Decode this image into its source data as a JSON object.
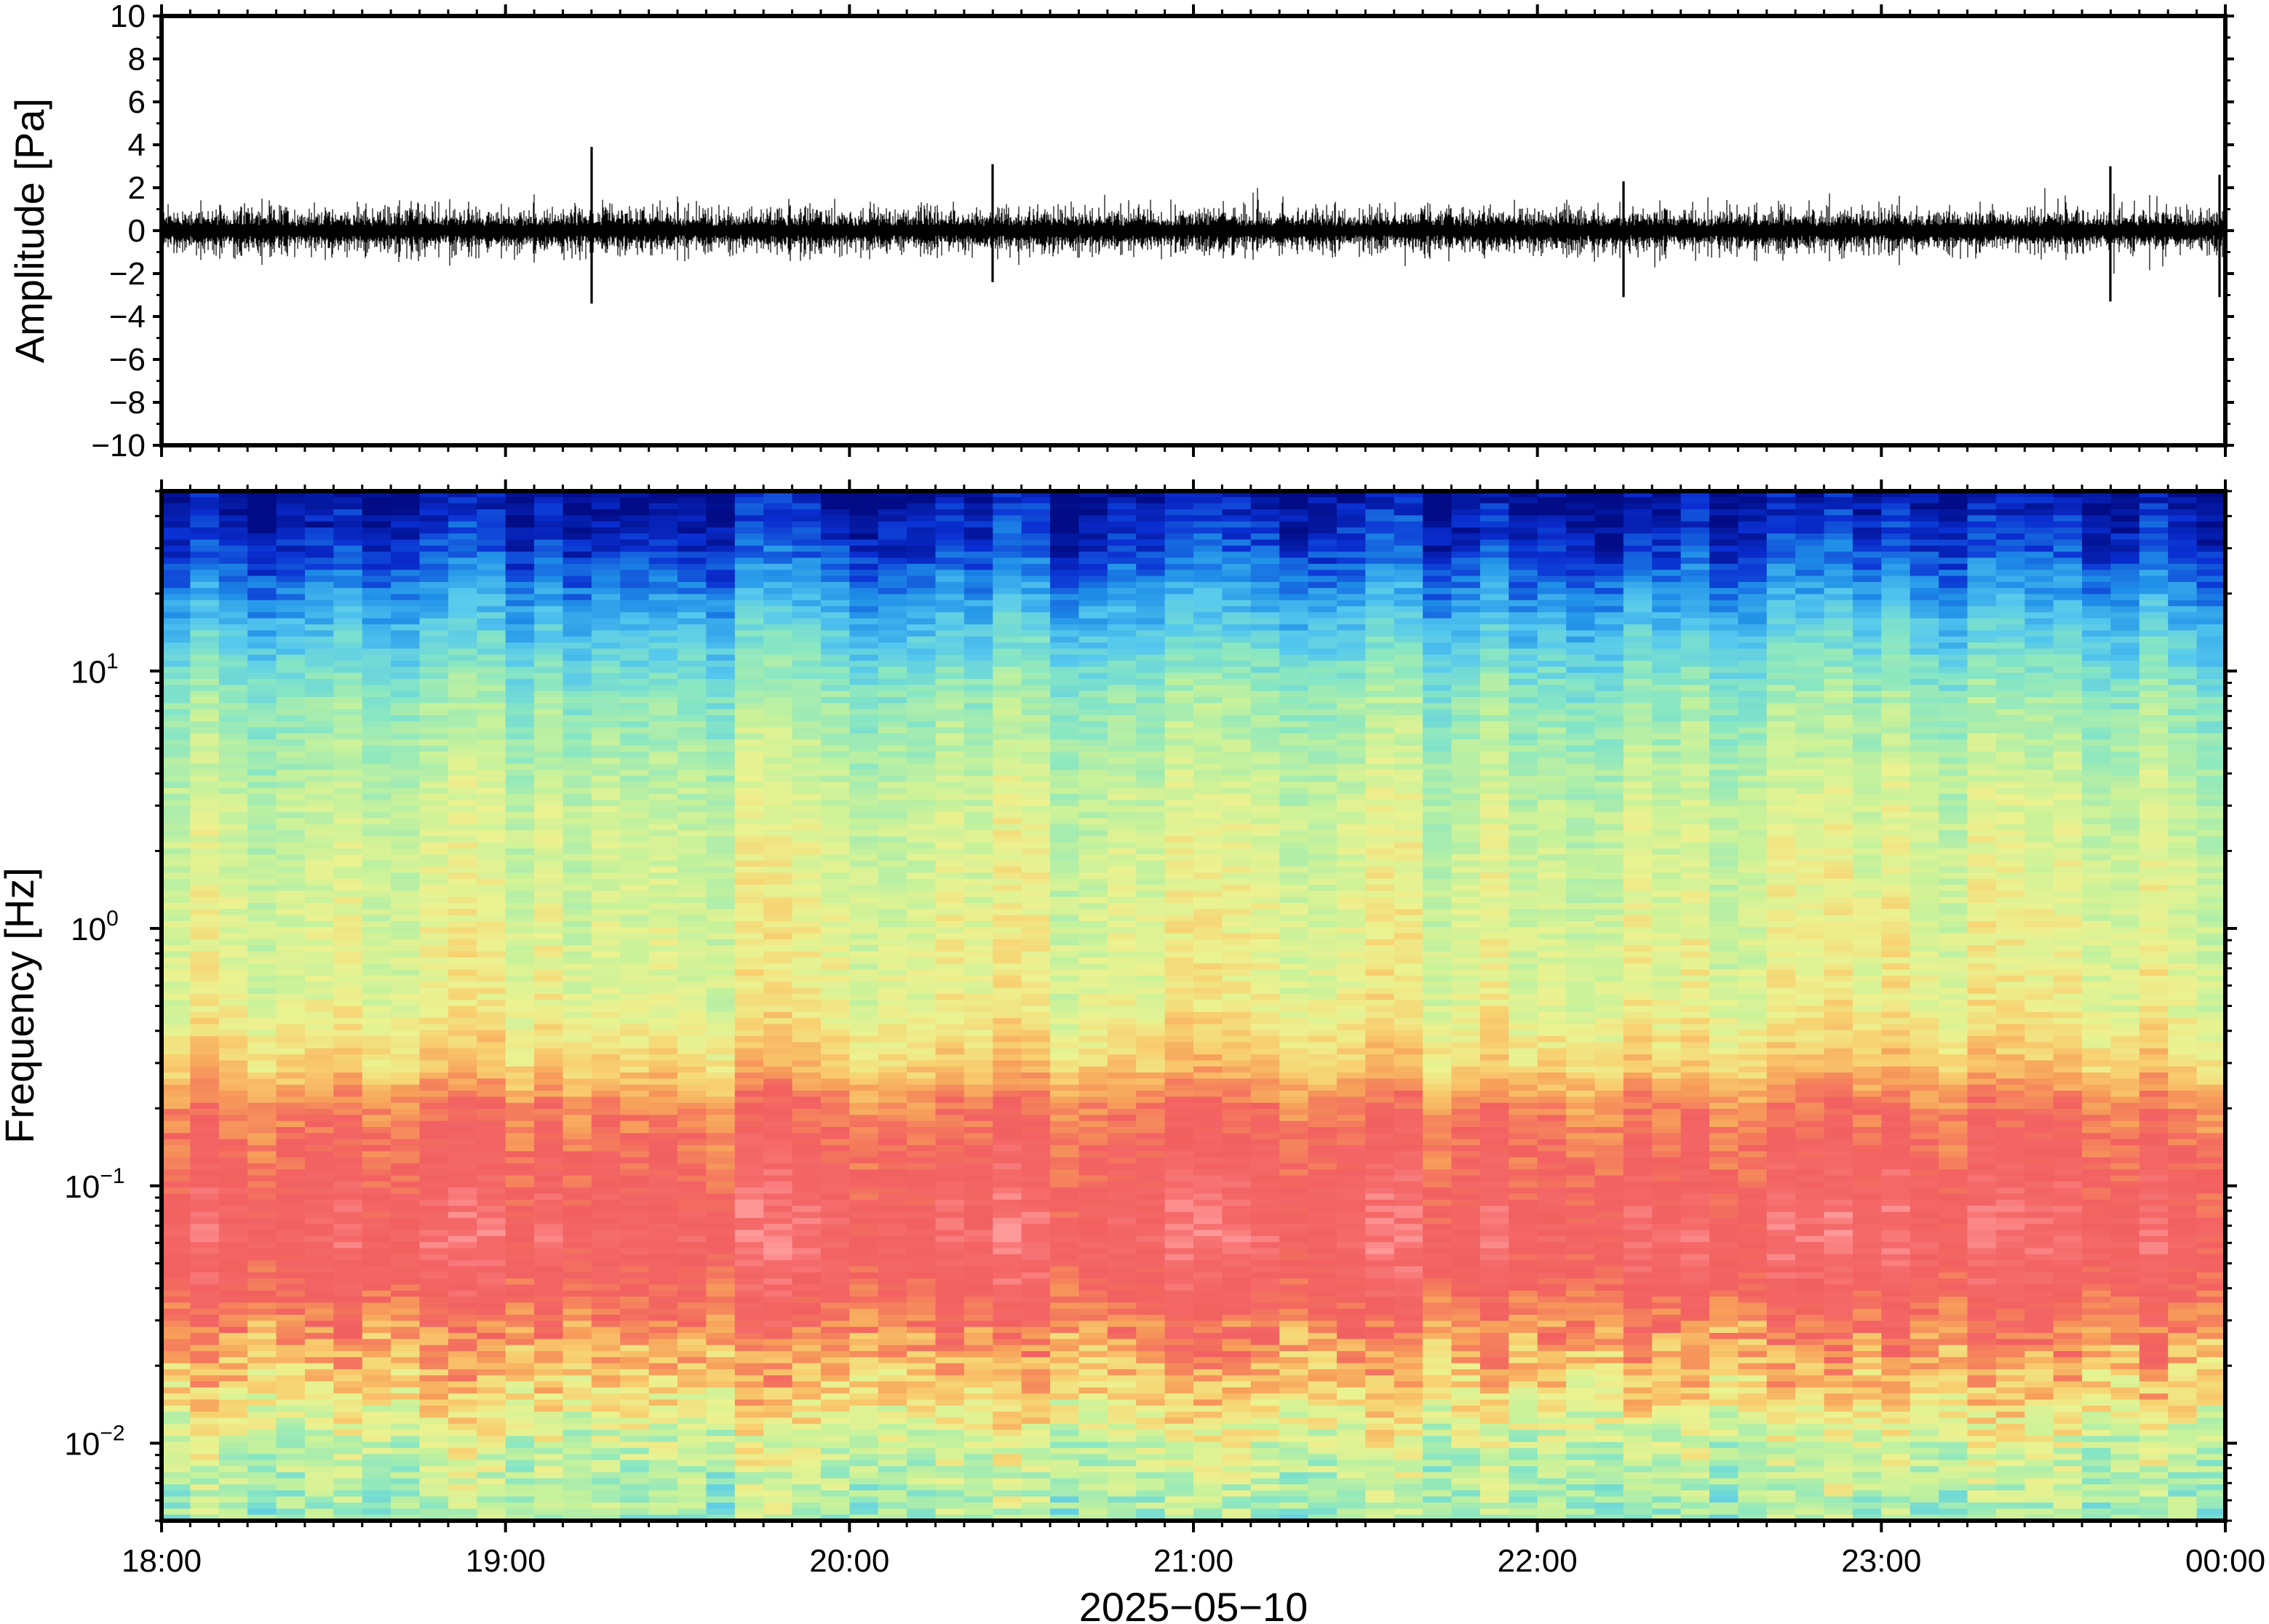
{
  "chart_data": [
    {
      "type": "line",
      "ylabel": "Amplitude [Pa]",
      "ylim": [
        -10,
        10
      ],
      "yticks": [
        -10,
        -8,
        -6,
        -4,
        -2,
        0,
        2,
        4,
        6,
        8,
        10
      ],
      "ytick_labels": [
        "−10",
        "−8",
        "−6",
        "−4",
        "−2",
        "0",
        "2",
        "4",
        "6",
        "8",
        "10"
      ],
      "xlim_hours": [
        18,
        24
      ],
      "series": [
        {
          "typical_range_pa": [
            -1.5,
            1.5
          ],
          "peaks": [
            {
              "time": "19:15",
              "max": 3.9,
              "min": -3.4
            },
            {
              "time": "20:25",
              "max": 3.1,
              "min": -2.4
            },
            {
              "time": "22:15",
              "max": 2.3,
              "min": -3.1
            },
            {
              "time": "23:40",
              "max": 3.0,
              "min": -3.3
            },
            {
              "time": "23:59",
              "max": 2.6,
              "min": -3.1
            }
          ]
        }
      ],
      "grid": false
    },
    {
      "type": "heatmap",
      "ylabel": "Frequency [Hz]",
      "yscale": "log",
      "ylim_hz": [
        0.005,
        50
      ],
      "yticks": [
        {
          "value": 0.01,
          "base": "10",
          "exp": "−2"
        },
        {
          "value": 0.1,
          "base": "10",
          "exp": "−1"
        },
        {
          "value": 1,
          "base": "10",
          "exp": "0"
        },
        {
          "value": 10,
          "base": "10",
          "exp": "1"
        }
      ],
      "xlabel": "2025−05−10",
      "xlim_hours": [
        18,
        24
      ],
      "xtick_labels": [
        "18:00",
        "19:00",
        "20:00",
        "21:00",
        "22:00",
        "23:00",
        "00:00"
      ],
      "colormap": "rainbow",
      "colors": [
        "#010c86",
        "#0a2fd2",
        "#1f8fe8",
        "#55c8ee",
        "#86e6c4",
        "#c8f29a",
        "#ecf290",
        "#f8d070",
        "#f7a05a",
        "#f26060",
        "#f56a6a",
        "#ff9a9a"
      ],
      "bands": [
        {
          "f_low": 20,
          "f_high": 50,
          "level": "lowest"
        },
        {
          "f_low": 5,
          "f_high": 20,
          "level": "low"
        },
        {
          "f_low": 0.5,
          "f_high": 5,
          "level": "medium"
        },
        {
          "f_low": 0.2,
          "f_high": 0.5,
          "level": "medium-high"
        },
        {
          "f_low": 0.03,
          "f_high": 0.2,
          "level": "highest"
        },
        {
          "f_low": 0.015,
          "f_high": 0.03,
          "level": "high"
        },
        {
          "f_low": 0.005,
          "f_high": 0.015,
          "level": "medium"
        }
      ],
      "grid": false
    }
  ]
}
